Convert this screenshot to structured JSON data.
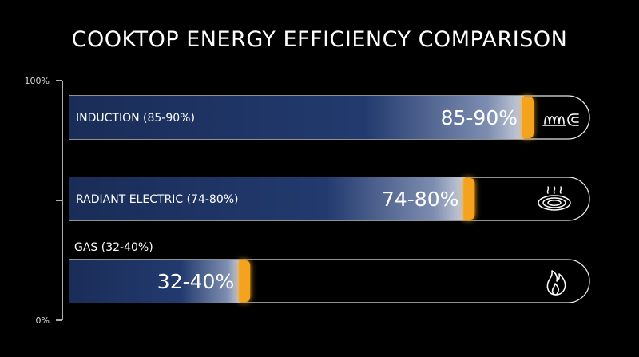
{
  "title": "COOKTOP ENERGY EFFICIENCY COMPARISON",
  "colors": {
    "background": "#000000",
    "bar_fill": "#1f3566",
    "bar_fill_dark": "#16264a",
    "accent": "#f5a21a",
    "outline": "#e8e8e8"
  },
  "chart_data": {
    "type": "bar",
    "orientation": "horizontal",
    "title": "COOKTOP ENERGY EFFICIENCY COMPARISON",
    "xlim": [
      0,
      100
    ],
    "axis_ticks": [
      "100%",
      "0%"
    ],
    "grid": false,
    "categories": [
      "INDUCTION (85-90%)",
      "RADIANT ELECTRIC (74-80%)",
      "GAS (32-40%)"
    ],
    "value_labels": [
      "85-90%",
      "74-80%",
      "32-40%"
    ],
    "ranges": [
      [
        85,
        90
      ],
      [
        74,
        80
      ],
      [
        32,
        40
      ]
    ],
    "icons": [
      "induction-coil-magnet-icon",
      "radiant-burner-heat-icon",
      "gas-flame-icon"
    ]
  }
}
